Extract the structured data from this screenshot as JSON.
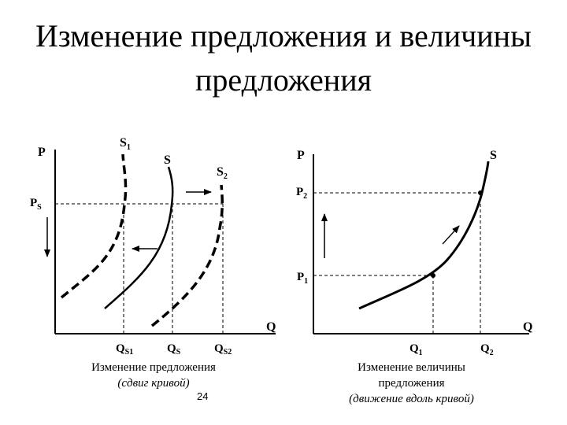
{
  "title_line1": "Изменение предложения и величины",
  "title_line2": "предложения",
  "left": {
    "p_axis": "P",
    "q_axis": "Q",
    "price": "P",
    "price_sub": "S",
    "s1": "S",
    "s1_sub": "1",
    "s": "S",
    "s2": "S",
    "s2_sub": "2",
    "qs1": "Q",
    "qs1_sub": "S1",
    "qs": "Q",
    "qs_sub": "S",
    "qs2": "Q",
    "qs2_sub": "S2",
    "caption_line1": "Изменение предложения",
    "caption_line2": "(сдвиг кривой)"
  },
  "right": {
    "p_axis": "P",
    "q_axis": "Q",
    "s": "S",
    "p2": "P",
    "p2_sub": "2",
    "p1": "P",
    "p1_sub": "1",
    "q1": "Q",
    "q1_sub": "1",
    "q2": "Q",
    "q2_sub": "2",
    "caption_line1": "Изменение величины",
    "caption_line2": "предложения",
    "caption_line3": "(движение вдоль кривой)"
  },
  "page_number": "24"
}
